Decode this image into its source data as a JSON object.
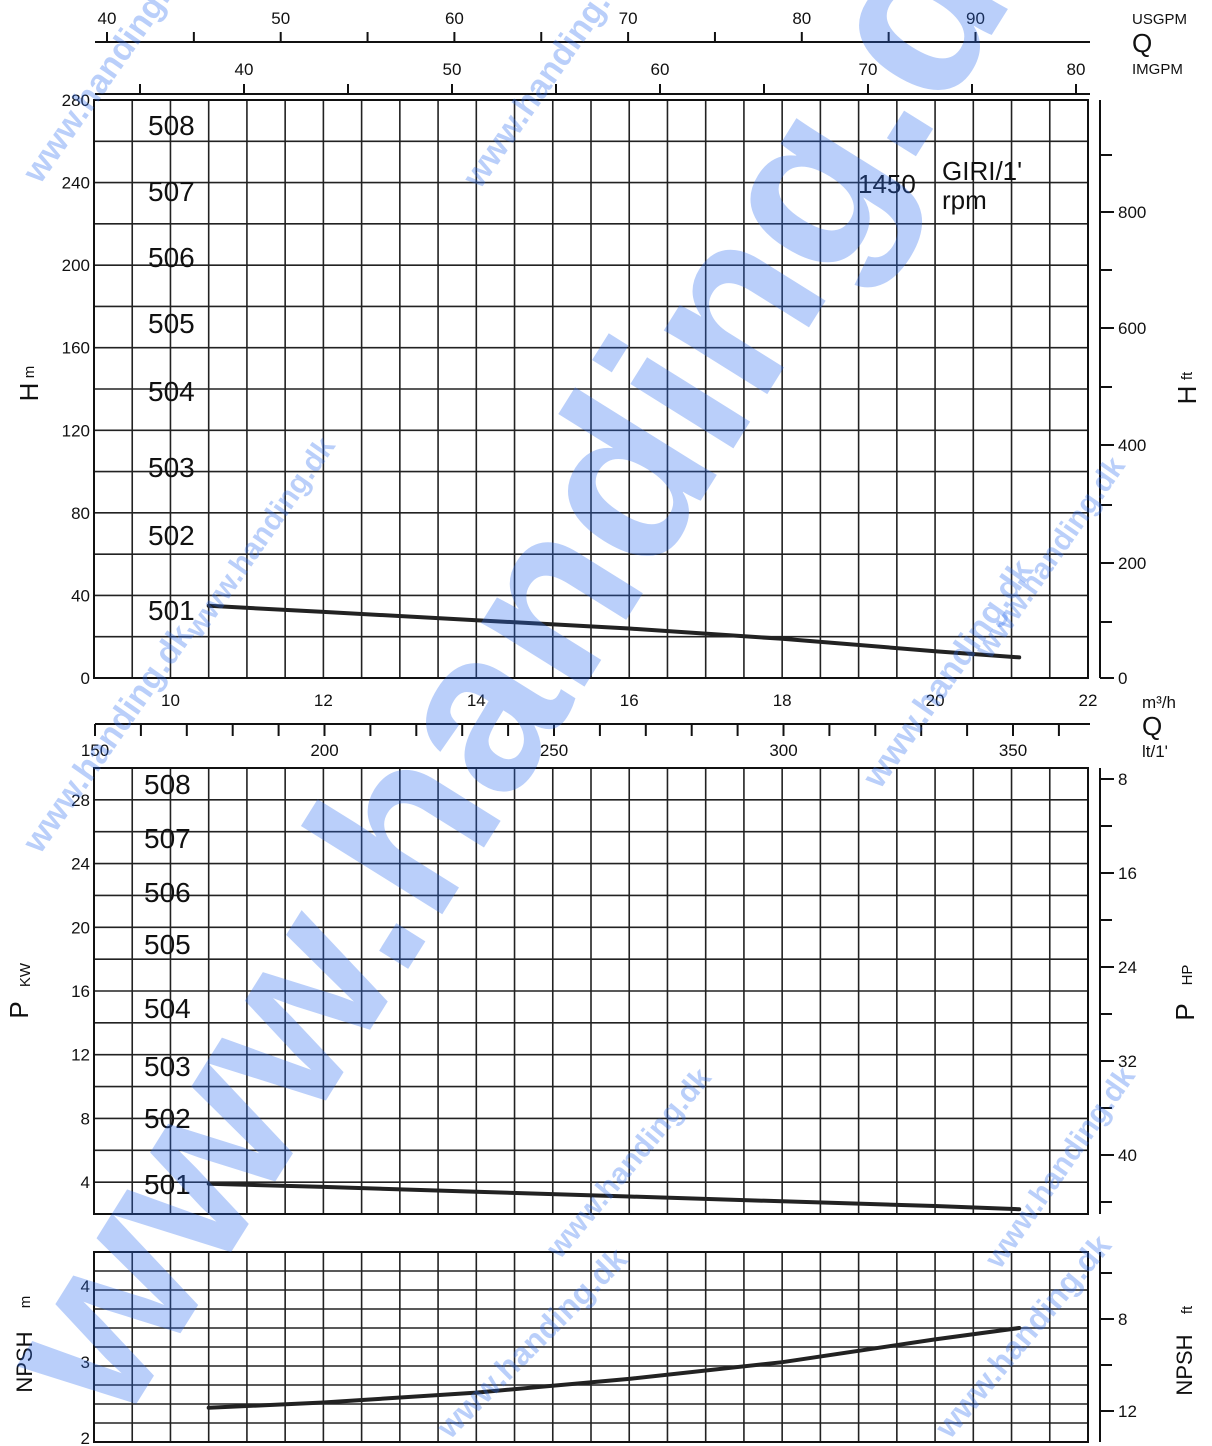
{
  "speed": {
    "value": "1450",
    "unit_top": "GIRI/1'",
    "unit_bottom": "rpm"
  },
  "watermark": "www.handing.dk",
  "colors": {
    "grid": "#222222",
    "curve": "#222222",
    "watermark": "#2b6cf0"
  },
  "top_axes": {
    "usgpm": {
      "label": "Q",
      "unit": "USGPM",
      "ticks": [
        40,
        50,
        60,
        70,
        80,
        90
      ]
    },
    "imgpm": {
      "unit": "IMGPM",
      "ticks": [
        40,
        50,
        60,
        70,
        80
      ]
    }
  },
  "flow_axes": {
    "m3h": {
      "label": "Q",
      "unit": "m³/h",
      "ticks": [
        10,
        12,
        14,
        16,
        18,
        20,
        22
      ]
    },
    "lts": {
      "unit": "lt/1'",
      "ticks": [
        150,
        200,
        250,
        300,
        350
      ]
    }
  },
  "stage_labels": [
    "508",
    "507",
    "506",
    "505",
    "504",
    "503",
    "502",
    "501"
  ],
  "chart_data": [
    {
      "type": "line",
      "name": "head",
      "ylabel": "H",
      "yunit": "m",
      "y2label": "H",
      "y2unit": "ft",
      "xlim": [
        9,
        22
      ],
      "ylim": [
        0,
        280
      ],
      "yticks": [
        0,
        40,
        80,
        120,
        160,
        200,
        240,
        280
      ],
      "y2ticks": [
        0,
        200,
        400,
        600,
        800
      ],
      "series": [
        {
          "name": "501",
          "x": [
            10.5,
            12,
            14,
            16,
            18,
            20,
            21.1
          ],
          "y": [
            35,
            32,
            28,
            24,
            19,
            13,
            10
          ]
        }
      ]
    },
    {
      "type": "line",
      "name": "power",
      "ylabel": "P",
      "yunit": "KW",
      "y2label": "P",
      "y2unit": "HP",
      "xlim": [
        9,
        22
      ],
      "ylim": [
        2,
        30
      ],
      "yticks": [
        4,
        8,
        12,
        16,
        20,
        24,
        28
      ],
      "y2ticks": [
        8,
        16,
        24,
        32,
        40
      ],
      "series": [
        {
          "name": "501",
          "x": [
            10.5,
            12,
            14,
            16,
            18,
            20,
            21.1
          ],
          "y": [
            3.9,
            3.7,
            3.4,
            3.1,
            2.8,
            2.5,
            2.3
          ]
        }
      ]
    },
    {
      "type": "line",
      "name": "npsh",
      "ylabel": "NPSH",
      "yunit": "m",
      "y2label": "NPSH",
      "y2unit": "ft",
      "xlim": [
        9,
        22
      ],
      "ylim": [
        2,
        4.5
      ],
      "yticks": [
        2,
        3,
        4
      ],
      "y2ticks": [
        8,
        12
      ],
      "series": [
        {
          "name": "npsh",
          "x": [
            10.5,
            12,
            14,
            16,
            18,
            20,
            21.1
          ],
          "y": [
            2.4,
            2.47,
            2.6,
            2.78,
            3.0,
            3.3,
            3.45
          ]
        }
      ]
    }
  ]
}
